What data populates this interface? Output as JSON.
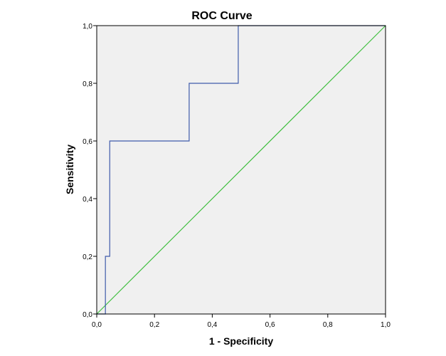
{
  "chart_data": {
    "type": "line",
    "title": "ROC Curve",
    "xlabel": "1 - Specificity",
    "ylabel": "Sensitivity",
    "xlim": [
      0,
      1
    ],
    "ylim": [
      0,
      1
    ],
    "x_ticks": [
      "0,0",
      "0,2",
      "0,4",
      "0,6",
      "0,8",
      "1,0"
    ],
    "y_ticks": [
      "0,0",
      "0,2",
      "0,4",
      "0,6",
      "0,8",
      "1,0"
    ],
    "grid": false,
    "plot_background": "#f0f0f0",
    "series": [
      {
        "color": "#3f5bab",
        "step": true,
        "x": [
          0.0,
          0.03,
          0.03,
          0.045,
          0.045,
          0.32,
          0.32,
          0.49,
          0.49,
          1.0
        ],
        "y": [
          0.0,
          0.0,
          0.2,
          0.2,
          0.6,
          0.6,
          0.8,
          0.8,
          1.0,
          1.0
        ]
      },
      {
        "color": "#3fbf3f",
        "x": [
          0,
          1
        ],
        "y": [
          0,
          1
        ]
      }
    ]
  }
}
